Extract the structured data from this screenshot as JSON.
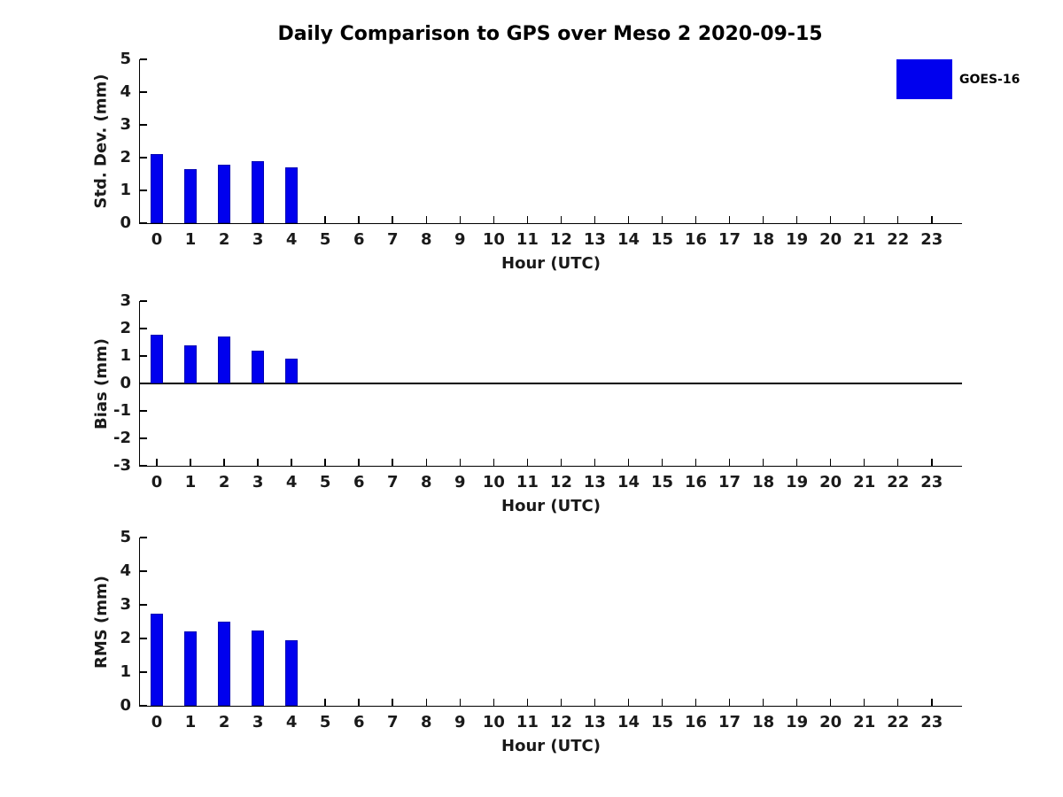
{
  "figure": {
    "title": "Daily Comparison to GPS over Meso 2 2020-09-15",
    "background": "#ffffff"
  },
  "legend": {
    "label": "GOES-16",
    "swatch_color": "#0000ee",
    "position": "top-right"
  },
  "colors": {
    "bar_fill": "#0000ee",
    "bar_edge": "#0000b3",
    "axis": "#000000",
    "text": "#1a1a1a"
  },
  "chart_data": [
    {
      "type": "bar",
      "ylabel": "Std. Dev. (mm)",
      "xlabel": "Hour (UTC)",
      "xlim": [
        -0.5,
        23.9
      ],
      "ylim": [
        0,
        5
      ],
      "yticks": [
        0,
        1,
        2,
        3,
        4,
        5
      ],
      "xticks": [
        0,
        1,
        2,
        3,
        4,
        5,
        6,
        7,
        8,
        9,
        10,
        11,
        12,
        13,
        14,
        15,
        16,
        17,
        18,
        19,
        20,
        21,
        22,
        23
      ],
      "grid": false,
      "zero_line": false,
      "series": [
        {
          "name": "GOES-16",
          "x": [
            0,
            1,
            2,
            3,
            4
          ],
          "values": [
            2.1,
            1.65,
            1.78,
            1.9,
            1.7
          ]
        }
      ]
    },
    {
      "type": "bar",
      "ylabel": "Bias (mm)",
      "xlabel": "Hour (UTC)",
      "xlim": [
        -0.5,
        23.9
      ],
      "ylim": [
        -3,
        3
      ],
      "yticks": [
        -3,
        -2,
        -1,
        0,
        1,
        2,
        3
      ],
      "xticks": [
        0,
        1,
        2,
        3,
        4,
        5,
        6,
        7,
        8,
        9,
        10,
        11,
        12,
        13,
        14,
        15,
        16,
        17,
        18,
        19,
        20,
        21,
        22,
        23
      ],
      "grid": false,
      "zero_line": true,
      "series": [
        {
          "name": "GOES-16",
          "x": [
            0,
            1,
            2,
            3,
            4
          ],
          "values": [
            1.78,
            1.4,
            1.72,
            1.2,
            0.9
          ]
        }
      ]
    },
    {
      "type": "bar",
      "ylabel": "RMS (mm)",
      "xlabel": "Hour (UTC)",
      "xlim": [
        -0.5,
        23.9
      ],
      "ylim": [
        0,
        5
      ],
      "yticks": [
        0,
        1,
        2,
        3,
        4,
        5
      ],
      "xticks": [
        0,
        1,
        2,
        3,
        4,
        5,
        6,
        7,
        8,
        9,
        10,
        11,
        12,
        13,
        14,
        15,
        16,
        17,
        18,
        19,
        20,
        21,
        22,
        23
      ],
      "grid": false,
      "zero_line": false,
      "series": [
        {
          "name": "GOES-16",
          "x": [
            0,
            1,
            2,
            3,
            4
          ],
          "values": [
            2.75,
            2.2,
            2.5,
            2.25,
            1.95
          ]
        }
      ]
    }
  ]
}
